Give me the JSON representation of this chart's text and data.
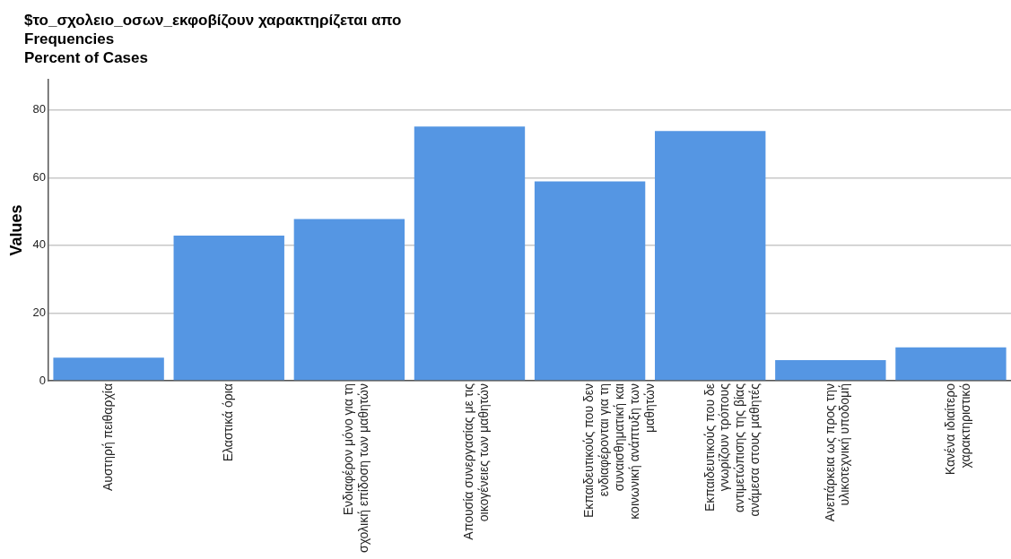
{
  "chart_data": {
    "type": "bar",
    "title": "$το_σχολειο_οσων_εκφοβίζουν χαρακτηρίζεται απο",
    "subtitle": "Frequencies\nPercent of Cases",
    "ylabel": "Values",
    "categories": [
      "Αυστηρή πειθαρχία",
      "Ελαστικά όρια",
      "Ενδιαφέρον μόνο για τη σχολική επίδοση των μαθητών",
      "Απουσία συνεργασίας με τις οικογένειες των μαθητών",
      "Εκπαιδευτικούς που δεν ενδιαφέρονται για τη συναισθηματική και κοινωνική ανάπτυξη των μαθητών",
      "Εκπαιδευτικούς που δε γνωρίζουν τρόπους αντιμετώπισης της βίας ανάμεσα στους μαθητές",
      "Ανεπάρκεια ως προς την υλικοτεχνική υποδομή",
      "Κανένα ιδιαίτερο χαρακτηριστικό"
    ],
    "values": [
      6.8,
      42.9,
      47.8,
      75.1,
      58.9,
      73.8,
      6.1,
      9.9
    ],
    "color": "#5596e3",
    "ylim": [
      0,
      89
    ],
    "yticks": [
      0,
      20,
      40,
      60,
      80
    ],
    "grid": "y",
    "legend": false
  }
}
